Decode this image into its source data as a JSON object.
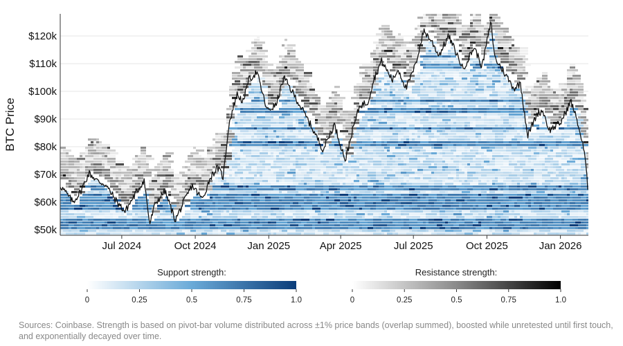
{
  "chart_data": {
    "type": "heatmap",
    "ylabel": "BTC Price",
    "y_ticks": [
      {
        "value": 50000,
        "label": "$50k"
      },
      {
        "value": 60000,
        "label": "$60k"
      },
      {
        "value": 70000,
        "label": "$70k"
      },
      {
        "value": 80000,
        "label": "$80k"
      },
      {
        "value": 90000,
        "label": "$90k"
      },
      {
        "value": 100000,
        "label": "$100k"
      },
      {
        "value": 110000,
        "label": "$110k"
      },
      {
        "value": 120000,
        "label": "$120k"
      }
    ],
    "x_ticks": [
      {
        "date": "2024-07-01",
        "label": "Jul 2024"
      },
      {
        "date": "2024-10-01",
        "label": "Oct 2024"
      },
      {
        "date": "2025-01-01",
        "label": "Jan 2025"
      },
      {
        "date": "2025-04-01",
        "label": "Apr 2025"
      },
      {
        "date": "2025-07-01",
        "label": "Jul 2025"
      },
      {
        "date": "2025-10-01",
        "label": "Oct 2025"
      },
      {
        "date": "2026-01-01",
        "label": "Jan 2026"
      }
    ],
    "xlim": [
      "2024-04-15",
      "2026-02-05"
    ],
    "ylim": [
      48000,
      128000
    ],
    "price_series": {
      "dates": [
        "2024-04-15",
        "2024-05-01",
        "2024-05-10",
        "2024-05-21",
        "2024-06-01",
        "2024-06-10",
        "2024-06-24",
        "2024-07-05",
        "2024-07-14",
        "2024-07-29",
        "2024-08-05",
        "2024-08-12",
        "2024-08-24",
        "2024-09-06",
        "2024-09-15",
        "2024-09-27",
        "2024-10-10",
        "2024-10-20",
        "2024-10-29",
        "2024-11-05",
        "2024-11-12",
        "2024-11-22",
        "2024-12-01",
        "2024-12-05",
        "2024-12-17",
        "2024-12-30",
        "2025-01-10",
        "2025-01-20",
        "2025-02-05",
        "2025-02-24",
        "2025-03-01",
        "2025-03-10",
        "2025-03-24",
        "2025-04-07",
        "2025-04-15",
        "2025-04-25",
        "2025-05-05",
        "2025-05-12",
        "2025-05-22",
        "2025-06-05",
        "2025-06-12",
        "2025-06-22",
        "2025-07-03",
        "2025-07-14",
        "2025-07-24",
        "2025-08-02",
        "2025-08-14",
        "2025-08-28",
        "2025-09-01",
        "2025-09-15",
        "2025-09-25",
        "2025-10-01",
        "2025-10-06",
        "2025-10-11",
        "2025-10-20",
        "2025-11-04",
        "2025-11-12",
        "2025-11-21",
        "2025-12-03",
        "2025-12-10",
        "2025-12-18",
        "2026-01-01",
        "2026-01-14",
        "2026-01-22",
        "2026-01-31",
        "2026-02-05"
      ],
      "values": [
        66000,
        60000,
        63500,
        70500,
        67500,
        66500,
        60500,
        56500,
        61000,
        68000,
        52000,
        59500,
        64000,
        53500,
        59000,
        66000,
        61000,
        69000,
        72500,
        69000,
        88000,
        99000,
        96000,
        103500,
        107000,
        93000,
        95000,
        105000,
        97000,
        87000,
        84000,
        79000,
        88000,
        75000,
        85000,
        95000,
        96000,
        104000,
        111000,
        104000,
        108000,
        101000,
        109000,
        122000,
        118000,
        113000,
        120000,
        111000,
        108000,
        116000,
        109000,
        118000,
        125000,
        112000,
        108000,
        101000,
        103000,
        84000,
        92000,
        93000,
        86000,
        88500,
        96500,
        89500,
        78000,
        63000
      ]
    },
    "colorbars": [
      {
        "title": "Support strength:",
        "ticks": [
          "0",
          "0.25",
          "0.5",
          "0.75",
          "1.0"
        ],
        "color_low": "#ffffff",
        "color_high": "#0b3d7a"
      },
      {
        "title": "Resistance strength:",
        "ticks": [
          "0",
          "0.25",
          "0.5",
          "0.75",
          "1.0"
        ],
        "color_low": "#ffffff",
        "color_high": "#000000"
      }
    ]
  },
  "source_note": "Sources: Coinbase. Strength is based on pivot-bar volume distributed across ±1% price bands (overlap summed), boosted while unretested until first touch, and exponentially decayed over time."
}
